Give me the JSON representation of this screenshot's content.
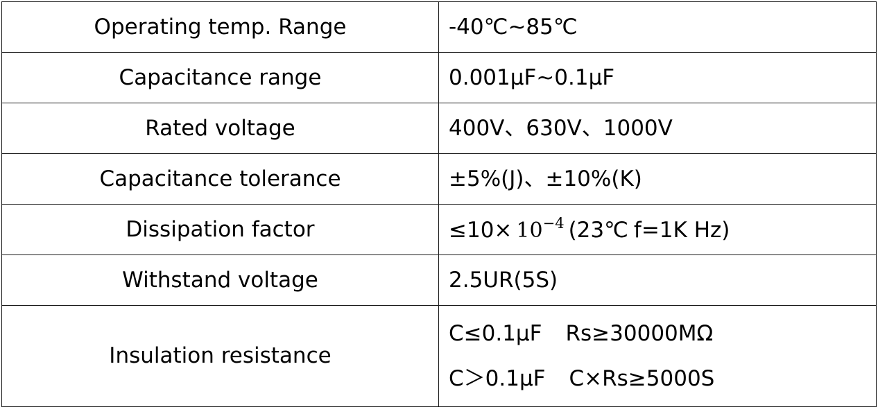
{
  "spec_table": {
    "rows": [
      {
        "label": "Operating temp. Range",
        "value": "-40℃~85℃"
      },
      {
        "label": "Capacitance range",
        "value": "0.001μF~0.1μF"
      },
      {
        "label": "Rated voltage",
        "value": "400V、630V、1000V"
      },
      {
        "label": "Capacitance tolerance",
        "value": "±5%(J)、±10%(K)"
      },
      {
        "label": "Dissipation factor",
        "value_prefix": "≤10×",
        "value_base": "10",
        "value_exponent": "−4",
        "value_condition": "(23℃",
        "value_frequency": "f=1K Hz)"
      },
      {
        "label": "Withstand voltage",
        "value": "2.5UR(5S)"
      },
      {
        "label": "Insulation resistance",
        "lines": [
          {
            "condition": "C≤0.1μF",
            "requirement": "Rs≥30000MΩ"
          },
          {
            "condition": "C＞0.1μF",
            "requirement": "C×Rs≥5000S"
          }
        ]
      }
    ]
  }
}
